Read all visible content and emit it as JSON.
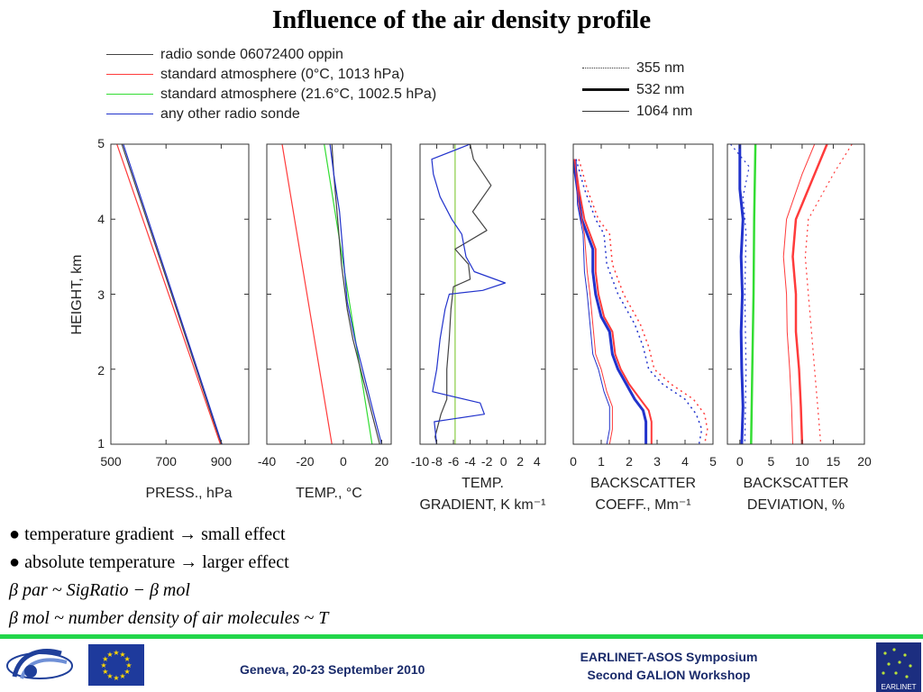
{
  "title": "Influence of the air density profile",
  "legend_left": [
    {
      "label": "radio sonde 06072400 oppin",
      "color": "#444444"
    },
    {
      "label": "standard atmosphere (0°C, 1013 hPa)",
      "color": "#ff3b3b"
    },
    {
      "label": "standard atmosphere (21.6°C, 1002.5 hPa)",
      "color": "#33dd33"
    },
    {
      "label": "any other radio sonde",
      "color": "#2233cc"
    }
  ],
  "legend_right": [
    {
      "label": "355 nm",
      "style": "dotted"
    },
    {
      "label": "532 nm",
      "style": "thick"
    },
    {
      "label": "1064 nm",
      "style": "thin"
    }
  ],
  "y_axis_label": "HEIGHT, km",
  "y_ticks": [
    "1",
    "2",
    "3",
    "4",
    "5"
  ],
  "chart_data": [
    {
      "type": "line",
      "xlim": [
        500,
        1000
      ],
      "ylim": [
        1,
        5
      ],
      "x_ticks": [
        500,
        700,
        900
      ],
      "xlabel": [
        "PRESS., hPa"
      ],
      "series": [
        {
          "color": "#444444",
          "points": [
            [
              540,
              5
            ],
            [
              900,
              1
            ]
          ]
        },
        {
          "color": "#ff3b3b",
          "points": [
            [
              522,
              5
            ],
            [
              897,
              1
            ]
          ]
        },
        {
          "color": "#2233cc",
          "points": [
            [
              545,
              5
            ],
            [
              903,
              1
            ]
          ]
        }
      ]
    },
    {
      "type": "line",
      "xlim": [
        -40,
        25
      ],
      "ylim": [
        1,
        5
      ],
      "x_ticks": [
        -40,
        -20,
        0,
        20
      ],
      "xlabel": [
        "TEMP., °C"
      ],
      "series": [
        {
          "color": "#ff3b3b",
          "points": [
            [
              -32,
              5
            ],
            [
              -6,
              1
            ]
          ]
        },
        {
          "color": "#33dd33",
          "points": [
            [
              -10,
              5
            ],
            [
              15,
              1
            ]
          ]
        },
        {
          "color": "#444444",
          "points": [
            [
              -6,
              5
            ],
            [
              -5,
              4.6
            ],
            [
              -3,
              4
            ],
            [
              -1,
              3.4
            ],
            [
              2,
              2.8
            ],
            [
              5,
              2.4
            ],
            [
              9,
              2
            ],
            [
              13,
              1.6
            ],
            [
              17,
              1.2
            ],
            [
              19,
              1
            ]
          ]
        },
        {
          "color": "#2233cc",
          "points": [
            [
              -7,
              5
            ],
            [
              -5,
              4.6
            ],
            [
              -2,
              4.1
            ],
            [
              0,
              3.5
            ],
            [
              2,
              2.9
            ],
            [
              6,
              2.4
            ],
            [
              10,
              2
            ],
            [
              14,
              1.6
            ],
            [
              18,
              1.2
            ],
            [
              20,
              1
            ]
          ]
        }
      ]
    },
    {
      "type": "line",
      "xlim": [
        -10,
        5
      ],
      "ylim": [
        1,
        5
      ],
      "x_ticks": [
        -10,
        -8,
        -6,
        -4,
        -2,
        0,
        2,
        4
      ],
      "xlabel": [
        "TEMP.",
        "GRADIENT, K km⁻¹"
      ],
      "series": [
        {
          "color": "#88cc44",
          "points": [
            [
              -5.8,
              5
            ],
            [
              -5.8,
              1
            ]
          ]
        },
        {
          "color": "#444444",
          "points": [
            [
              -4,
              5
            ],
            [
              -3.6,
              4.8
            ],
            [
              -1.5,
              4.45
            ],
            [
              -3.7,
              4.1
            ],
            [
              -2,
              3.85
            ],
            [
              -5.8,
              3.6
            ],
            [
              -4.2,
              3.4
            ],
            [
              -4,
              3.2
            ],
            [
              -6,
              3.1
            ],
            [
              -6.3,
              2.8
            ],
            [
              -6.5,
              2.4
            ],
            [
              -6.8,
              2
            ],
            [
              -6.8,
              1.6
            ],
            [
              -7.5,
              1.4
            ],
            [
              -8.2,
              1.1
            ],
            [
              -8,
              1
            ]
          ]
        },
        {
          "color": "#2233cc",
          "points": [
            [
              -4,
              5
            ],
            [
              -8.6,
              4.8
            ],
            [
              -8.4,
              4.6
            ],
            [
              -7.6,
              4.3
            ],
            [
              -6.2,
              4.0
            ],
            [
              -5.0,
              3.8
            ],
            [
              -4.5,
              3.5
            ],
            [
              -3.5,
              3.3
            ],
            [
              0.2,
              3.15
            ],
            [
              -2.5,
              3.05
            ],
            [
              -6.5,
              3.0
            ],
            [
              -7.0,
              2.8
            ],
            [
              -7.6,
              2.4
            ],
            [
              -8.0,
              2.0
            ],
            [
              -8.5,
              1.7
            ],
            [
              -2.8,
              1.55
            ],
            [
              -2.3,
              1.4
            ],
            [
              -8.3,
              1.3
            ],
            [
              -8.0,
              1
            ]
          ]
        }
      ]
    },
    {
      "type": "line",
      "xlim": [
        0,
        5
      ],
      "ylim": [
        1,
        5
      ],
      "x_ticks": [
        0,
        1,
        2,
        3,
        4,
        5
      ],
      "xlabel": [
        "BACKSCATTER",
        "COEFF., Mm⁻¹"
      ],
      "series": [
        {
          "color": "#2233cc",
          "width": 3,
          "dash": "",
          "points": [
            [
              0.0,
              4.8
            ],
            [
              0.15,
              4.4
            ],
            [
              0.3,
              4.0
            ],
            [
              0.5,
              3.8
            ],
            [
              0.7,
              3.6
            ],
            [
              0.7,
              3.3
            ],
            [
              0.8,
              3.0
            ],
            [
              1.0,
              2.7
            ],
            [
              1.3,
              2.5
            ],
            [
              1.4,
              2.2
            ],
            [
              1.6,
              2.0
            ],
            [
              1.9,
              1.8
            ],
            [
              2.2,
              1.6
            ],
            [
              2.5,
              1.45
            ],
            [
              2.6,
              1.3
            ],
            [
              2.6,
              1
            ]
          ]
        },
        {
          "color": "#ff3b3b",
          "width": 2,
          "dash": "",
          "points": [
            [
              0.05,
              4.8
            ],
            [
              0.2,
              4.4
            ],
            [
              0.4,
              4.0
            ],
            [
              0.6,
              3.8
            ],
            [
              0.8,
              3.6
            ],
            [
              0.8,
              3.3
            ],
            [
              0.9,
              3.0
            ],
            [
              1.1,
              2.7
            ],
            [
              1.4,
              2.5
            ],
            [
              1.5,
              2.2
            ],
            [
              1.7,
              2.0
            ],
            [
              2.0,
              1.8
            ],
            [
              2.4,
              1.6
            ],
            [
              2.7,
              1.45
            ],
            [
              2.8,
              1.3
            ],
            [
              2.8,
              1
            ]
          ]
        },
        {
          "color": "#2233cc",
          "width": 1,
          "dash": "",
          "points": [
            [
              0.1,
              4.8
            ],
            [
              0.15,
              4.2
            ],
            [
              0.35,
              3.8
            ],
            [
              0.4,
              3.3
            ],
            [
              0.5,
              3.0
            ],
            [
              0.6,
              2.6
            ],
            [
              0.7,
              2.2
            ],
            [
              0.9,
              2.0
            ],
            [
              1.1,
              1.7
            ],
            [
              1.3,
              1.5
            ],
            [
              1.3,
              1.2
            ],
            [
              1.2,
              1
            ]
          ]
        },
        {
          "color": "#ff3b3b",
          "width": 1,
          "dash": "",
          "points": [
            [
              0.05,
              4.8
            ],
            [
              0.2,
              4.2
            ],
            [
              0.4,
              3.8
            ],
            [
              0.5,
              3.3
            ],
            [
              0.6,
              3.0
            ],
            [
              0.7,
              2.6
            ],
            [
              0.8,
              2.2
            ],
            [
              1.0,
              2.0
            ],
            [
              1.2,
              1.7
            ],
            [
              1.4,
              1.5
            ],
            [
              1.4,
              1.2
            ],
            [
              1.3,
              1
            ]
          ]
        },
        {
          "color": "#2233cc",
          "width": 1.5,
          "dash": "2 4",
          "points": [
            [
              0.1,
              4.8
            ],
            [
              0.4,
              4.4
            ],
            [
              0.8,
              4.0
            ],
            [
              1.1,
              3.8
            ],
            [
              1.2,
              3.4
            ],
            [
              1.6,
              3.0
            ],
            [
              2.2,
              2.6
            ],
            [
              2.5,
              2.3
            ],
            [
              2.7,
              2.0
            ],
            [
              3.2,
              1.8
            ],
            [
              4.0,
              1.6
            ],
            [
              4.4,
              1.4
            ],
            [
              4.6,
              1.2
            ],
            [
              4.5,
              1
            ]
          ]
        },
        {
          "color": "#ff3b3b",
          "width": 1.5,
          "dash": "2 4",
          "points": [
            [
              0.2,
              4.8
            ],
            [
              0.5,
              4.4
            ],
            [
              0.9,
              4.0
            ],
            [
              1.3,
              3.8
            ],
            [
              1.4,
              3.4
            ],
            [
              1.8,
              3.0
            ],
            [
              2.4,
              2.6
            ],
            [
              2.7,
              2.3
            ],
            [
              2.9,
              2.0
            ],
            [
              3.5,
              1.8
            ],
            [
              4.3,
              1.6
            ],
            [
              4.7,
              1.4
            ],
            [
              4.8,
              1.2
            ],
            [
              4.7,
              1
            ]
          ]
        }
      ]
    },
    {
      "type": "line",
      "xlim": [
        -2,
        20
      ],
      "ylim": [
        1,
        5
      ],
      "x_ticks": [
        0,
        5,
        10,
        15,
        20
      ],
      "xlabel": [
        "BACKSCATTER",
        "DEVIATION, %"
      ],
      "series": [
        {
          "color": "#33dd33",
          "width": 2.5,
          "dash": "",
          "points": [
            [
              2.5,
              5
            ],
            [
              2.3,
              4
            ],
            [
              2.2,
              3
            ],
            [
              2.0,
              2
            ],
            [
              1.8,
              1
            ]
          ]
        },
        {
          "color": "#2233cc",
          "width": 3,
          "dash": "",
          "points": [
            [
              0.0,
              5
            ],
            [
              0.0,
              4.4
            ],
            [
              0.5,
              4.0
            ],
            [
              0.2,
              3.5
            ],
            [
              0.4,
              3.0
            ],
            [
              0.2,
              2.5
            ],
            [
              0.3,
              2.0
            ],
            [
              0.5,
              1.5
            ],
            [
              0.3,
              1
            ]
          ]
        },
        {
          "color": "#2233cc",
          "width": 1.2,
          "dash": "2 4",
          "points": [
            [
              -1.5,
              5
            ],
            [
              1.5,
              4.7
            ],
            [
              0.5,
              4.3
            ],
            [
              1.0,
              3.8
            ],
            [
              0.8,
              3.0
            ],
            [
              1.0,
              2.0
            ],
            [
              0.8,
              1
            ]
          ]
        },
        {
          "color": "#ff3b3b",
          "width": 2.5,
          "dash": "",
          "points": [
            [
              14,
              5
            ],
            [
              12,
              4.6
            ],
            [
              9,
              4.0
            ],
            [
              8.5,
              3.5
            ],
            [
              9,
              3.0
            ],
            [
              9,
              2.5
            ],
            [
              9.5,
              2.0
            ],
            [
              9.8,
              1.5
            ],
            [
              10,
              1
            ]
          ]
        },
        {
          "color": "#ff3b3b",
          "width": 1,
          "dash": "",
          "points": [
            [
              12,
              5
            ],
            [
              10,
              4.6
            ],
            [
              7.5,
              4.0
            ],
            [
              7.0,
              3.5
            ],
            [
              7.5,
              3.0
            ],
            [
              7.6,
              2.5
            ],
            [
              8.0,
              2.0
            ],
            [
              8.3,
              1.5
            ],
            [
              8.5,
              1
            ]
          ]
        },
        {
          "color": "#ff3b3b",
          "width": 1.2,
          "dash": "2 4",
          "points": [
            [
              18,
              5
            ],
            [
              15,
              4.6
            ],
            [
              11,
              4.0
            ],
            [
              10.5,
              3.5
            ],
            [
              11,
              3.0
            ],
            [
              11.5,
              2.5
            ],
            [
              12,
              2.0
            ],
            [
              12.5,
              1.5
            ],
            [
              13,
              1
            ]
          ]
        }
      ]
    }
  ],
  "bullets": [
    "● temperature gradient → small effect",
    "● absolute temperature → larger effect"
  ],
  "formulas": [
    "β par ~ SigRatio − β mol",
    "β mol ~ number density of air molecules ~ T"
  ],
  "footer": {
    "location_date": "Geneva, 20-23 September 2010",
    "symposium_line1": "EARLINET-ASOS Symposium",
    "symposium_line2": "Second GALION Workshop",
    "logo_text": "EARLINET",
    "eu_flag_color": "#1e3a9c",
    "eu_star_color": "#ffd700",
    "line_color": "#22d64a"
  }
}
